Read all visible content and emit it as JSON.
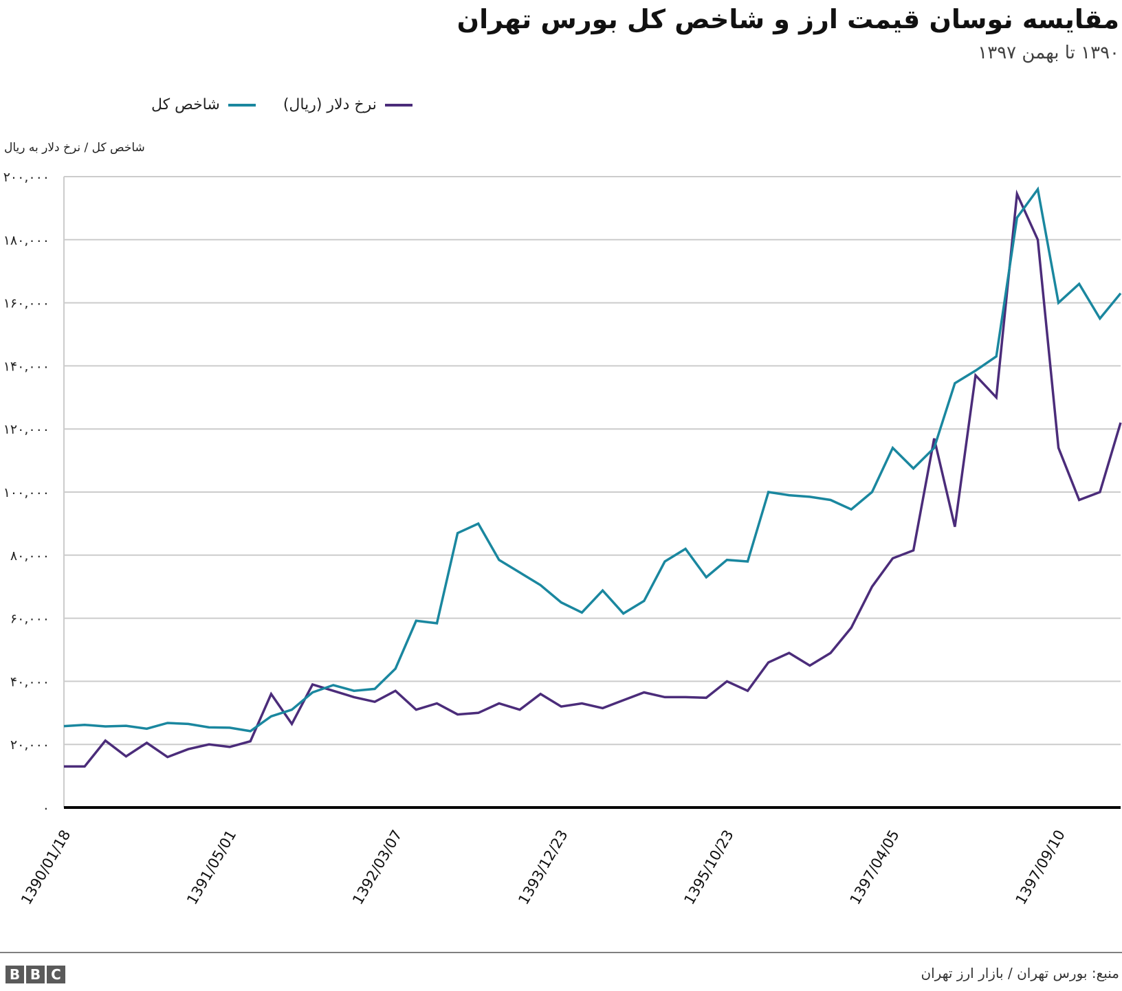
{
  "header": {
    "title": "مقایسه نوسان قیمت ارز و شاخص کل بورس تهران",
    "subtitle": "۱۳۹۰ تا بهمن ۱۳۹۷"
  },
  "legend": [
    {
      "label": "نرخ دلار (ریال)",
      "color": "#4b2c7a"
    },
    {
      "label": "شاخص کل",
      "color": "#1a879f"
    }
  ],
  "axis": {
    "ylabel": "شاخص کل / نرخ دلار به ریال",
    "yticks": [
      "۰",
      "۲۰,۰۰۰",
      "۴۰,۰۰۰",
      "۶۰,۰۰۰",
      "۸۰,۰۰۰",
      "۱۰۰,۰۰۰",
      "۱۲۰,۰۰۰",
      "۱۴۰,۰۰۰",
      "۱۶۰,۰۰۰",
      "۱۸۰,۰۰۰",
      "۲۰۰,۰۰۰"
    ],
    "xticks": [
      "1390/01/18",
      "1391/05/01",
      "1392/03/07",
      "1393/12/23",
      "1395/10/23",
      "1397/04/05",
      "1397/09/10"
    ]
  },
  "footer": {
    "brand": [
      "B",
      "B",
      "C"
    ],
    "source": "منبع: بورس تهران / بازار ارز تهران"
  },
  "chart_data": {
    "type": "line",
    "title": "مقایسه نوسان قیمت ارز و شاخص کل بورس تهران",
    "subtitle": "۱۳۹۰ تا بهمن ۱۳۹۷",
    "xlabel": "",
    "ylabel": "شاخص کل / نرخ دلار به ریال",
    "ylim": [
      0,
      200000
    ],
    "grid": true,
    "legend_position": "top-left",
    "x_tick_labels": [
      "1390/01/18",
      "1391/05/01",
      "1392/03/07",
      "1393/12/23",
      "1395/10/23",
      "1397/04/05",
      "1397/09/10"
    ],
    "x_tick_indices": [
      0,
      8,
      16,
      24,
      32,
      40,
      48
    ],
    "series": [
      {
        "name": "شاخص کل",
        "color": "#1a879f",
        "values": [
          25800,
          26200,
          25700,
          25900,
          25000,
          26800,
          26500,
          25400,
          25300,
          24200,
          28900,
          31000,
          36500,
          38800,
          37000,
          37600,
          44000,
          59200,
          58400,
          87000,
          90000,
          78500,
          74500,
          70500,
          65000,
          61800,
          68800,
          61500,
          65500,
          78000,
          82000,
          73000,
          78500,
          78000,
          100000,
          99000,
          98500,
          97500,
          94500,
          100000,
          114000,
          107500,
          114000,
          134500,
          138500,
          143000,
          187000,
          196000,
          160000,
          166000,
          155000,
          163000
        ]
      },
      {
        "name": "نرخ دلار (ریال)",
        "color": "#4b2c7a",
        "values": [
          13000,
          13000,
          21200,
          16200,
          20500,
          16000,
          18500,
          20000,
          19200,
          21000,
          36000,
          26500,
          39000,
          37000,
          35000,
          33500,
          37000,
          31000,
          33000,
          29500,
          30000,
          33000,
          31000,
          36000,
          32000,
          33000,
          31500,
          34000,
          36500,
          35000,
          35000,
          34800,
          40000,
          37000,
          46000,
          49000,
          45000,
          49000,
          57000,
          70000,
          79000,
          81500,
          117000,
          89000,
          137000,
          130000,
          194500,
          180000,
          114000,
          97500,
          100000,
          122000
        ]
      }
    ]
  }
}
